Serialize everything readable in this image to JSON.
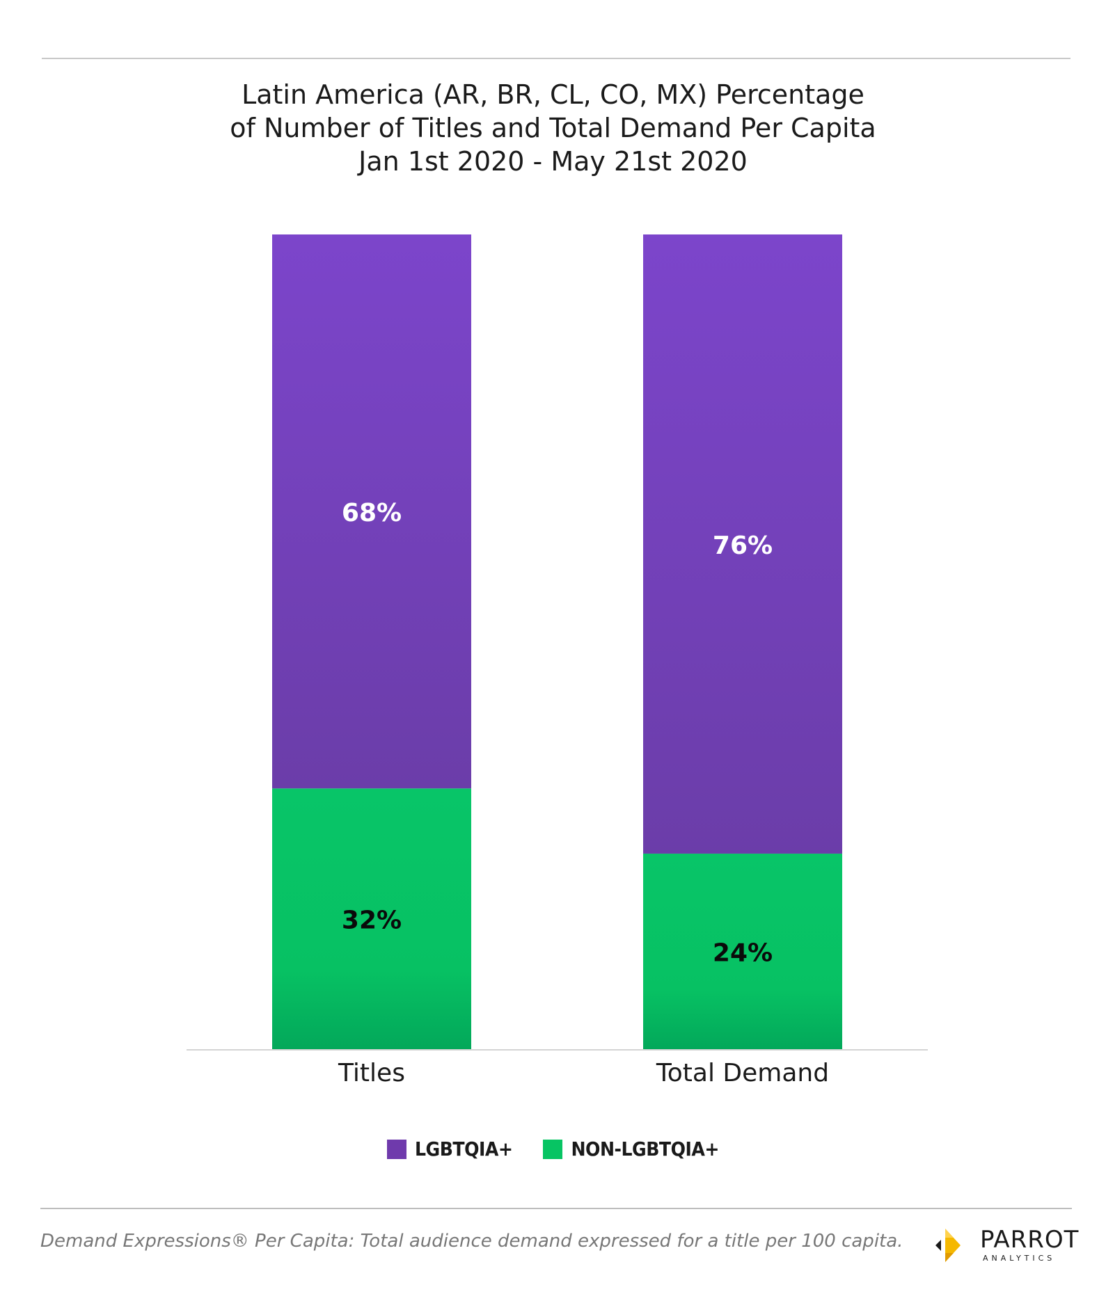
{
  "chart_data": {
    "type": "bar",
    "stacked": true,
    "title": [
      "Latin America (AR, BR, CL, CO, MX) Percentage",
      "of Number of Titles and Total Demand Per Capita",
      "Jan 1st 2020 - May 21st 2020"
    ],
    "categories": [
      "Titles",
      "Total Demand"
    ],
    "series": [
      {
        "name": "NON-LGBTQIA+",
        "values": [
          32,
          24
        ],
        "color": "#07c463",
        "labels": [
          "32%",
          "24%"
        ]
      },
      {
        "name": "LGBTQIA+",
        "values": [
          68,
          76
        ],
        "color": "#7a42c6",
        "labels": [
          "68%",
          "76%"
        ]
      }
    ],
    "ylim": [
      0,
      100
    ],
    "legend": {
      "placement": "bottom",
      "order": [
        "LGBTQIA+",
        "NON-LGBTQIA+"
      ]
    },
    "grid": false
  },
  "footnote": "Demand Expressions® Per Capita: Total audience demand expressed for a title per 100 capita.",
  "brand": {
    "name": "PARROT",
    "sub": "ANALYTICS",
    "icon": "parrot-logo-icon"
  }
}
